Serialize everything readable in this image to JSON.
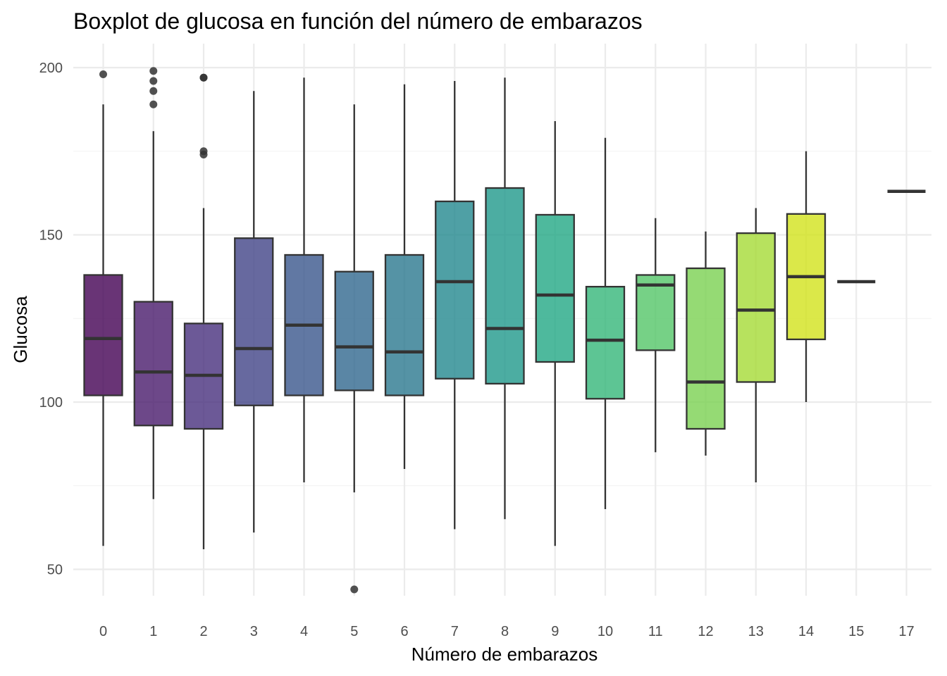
{
  "chart_data": {
    "type": "boxplot",
    "title": "Boxplot de glucosa en función del número de embarazos",
    "xlabel": "Número de embarazos",
    "ylabel": "Glucosa",
    "ylim": [
      37,
      203
    ],
    "y_ticks": [
      50,
      100,
      150,
      200
    ],
    "grid": true,
    "legend": "none",
    "box_stroke": "#333333",
    "categories": [
      "0",
      "1",
      "2",
      "3",
      "4",
      "5",
      "6",
      "7",
      "8",
      "9",
      "10",
      "11",
      "12",
      "13",
      "14",
      "15",
      "17"
    ],
    "boxes": [
      {
        "x": "0",
        "whisker_low": 57,
        "q1": 102,
        "median": 119,
        "q3": 138,
        "whisker_high": 189,
        "outliers": [
          198
        ],
        "color": "#440154"
      },
      {
        "x": "1",
        "whisker_low": 71,
        "q1": 93,
        "median": 109,
        "q3": 130,
        "whisker_high": 181,
        "outliers": [
          189,
          193,
          196,
          199
        ],
        "color": "#481a6c"
      },
      {
        "x": "2",
        "whisker_low": 56,
        "q1": 92,
        "median": 108,
        "q3": 123.5,
        "whisker_high": 158,
        "outliers": [
          174,
          175,
          197,
          197
        ],
        "color": "#472f7d"
      },
      {
        "x": "3",
        "whisker_low": 61,
        "q1": 99,
        "median": 116,
        "q3": 149,
        "whisker_high": 193,
        "outliers": [],
        "color": "#414487"
      },
      {
        "x": "4",
        "whisker_low": 76,
        "q1": 102,
        "median": 123,
        "q3": 144,
        "whisker_high": 197,
        "outliers": [],
        "color": "#39568c"
      },
      {
        "x": "5",
        "whisker_low": 73,
        "q1": 103.5,
        "median": 116.5,
        "q3": 139,
        "whisker_high": 189,
        "outliers": [
          44
        ],
        "color": "#31688e"
      },
      {
        "x": "6",
        "whisker_low": 80,
        "q1": 102,
        "median": 115,
        "q3": 144,
        "whisker_high": 195,
        "outliers": [],
        "color": "#2a788e"
      },
      {
        "x": "7",
        "whisker_low": 62,
        "q1": 107,
        "median": 136,
        "q3": 160,
        "whisker_high": 196,
        "outliers": [],
        "color": "#23888e"
      },
      {
        "x": "8",
        "whisker_low": 65,
        "q1": 105.5,
        "median": 122,
        "q3": 164,
        "whisker_high": 197,
        "outliers": [],
        "color": "#1f988b"
      },
      {
        "x": "9",
        "whisker_low": 57,
        "q1": 112,
        "median": 132,
        "q3": 156,
        "whisker_high": 184,
        "outliers": [],
        "color": "#22a884"
      },
      {
        "x": "10",
        "whisker_low": 68,
        "q1": 101,
        "median": 118.5,
        "q3": 134.5,
        "whisker_high": 179,
        "outliers": [],
        "color": "#35b779"
      },
      {
        "x": "11",
        "whisker_low": 85,
        "q1": 115.5,
        "median": 135,
        "q3": 138,
        "whisker_high": 155,
        "outliers": [],
        "color": "#54c568"
      },
      {
        "x": "12",
        "whisker_low": 84,
        "q1": 92,
        "median": 106,
        "q3": 140,
        "whisker_high": 151,
        "outliers": [],
        "color": "#7ad151"
      },
      {
        "x": "13",
        "whisker_low": 76,
        "q1": 106,
        "median": 127.5,
        "q3": 150.5,
        "whisker_high": 158,
        "outliers": [],
        "color": "#a5db36"
      },
      {
        "x": "14",
        "whisker_low": 100,
        "q1": 118.75,
        "median": 137.5,
        "q3": 156.25,
        "whisker_high": 175,
        "outliers": [],
        "color": "#d2e21b"
      },
      {
        "x": "15",
        "whisker_low": 136,
        "q1": 136,
        "median": 136,
        "q3": 136,
        "whisker_high": 136,
        "outliers": [],
        "color": "#fde725"
      },
      {
        "x": "17",
        "whisker_low": 163,
        "q1": 163,
        "median": 163,
        "q3": 163,
        "whisker_high": 163,
        "outliers": [],
        "color": "#fde725"
      }
    ]
  }
}
